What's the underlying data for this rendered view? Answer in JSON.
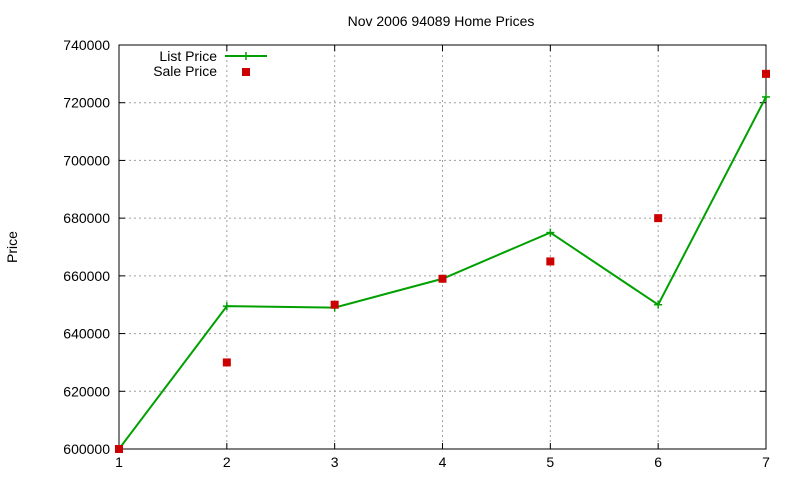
{
  "chart_data": {
    "type": "line",
    "title": "Nov 2006 94089 Home Prices",
    "xlabel": "",
    "ylabel": "Price",
    "xlim": [
      1,
      7
    ],
    "ylim": [
      600000,
      740000
    ],
    "xticks": [
      1,
      2,
      3,
      4,
      5,
      6,
      7
    ],
    "yticks": [
      600000,
      620000,
      640000,
      660000,
      680000,
      700000,
      720000,
      740000
    ],
    "grid": true,
    "legend_position": "top-left",
    "series": [
      {
        "name": "List Price",
        "style": "line-with-plus-markers",
        "color": "#00a000",
        "x": [
          1,
          2,
          3,
          4,
          5,
          6,
          7
        ],
        "y": [
          600000,
          649500,
          649000,
          659000,
          675000,
          650000,
          722000
        ]
      },
      {
        "name": "Sale Price",
        "style": "square-points",
        "color": "#cc0000",
        "x": [
          1,
          2,
          3,
          4,
          5,
          6,
          7
        ],
        "y": [
          600000,
          630000,
          650000,
          659000,
          665000,
          680000,
          730000
        ]
      }
    ]
  }
}
